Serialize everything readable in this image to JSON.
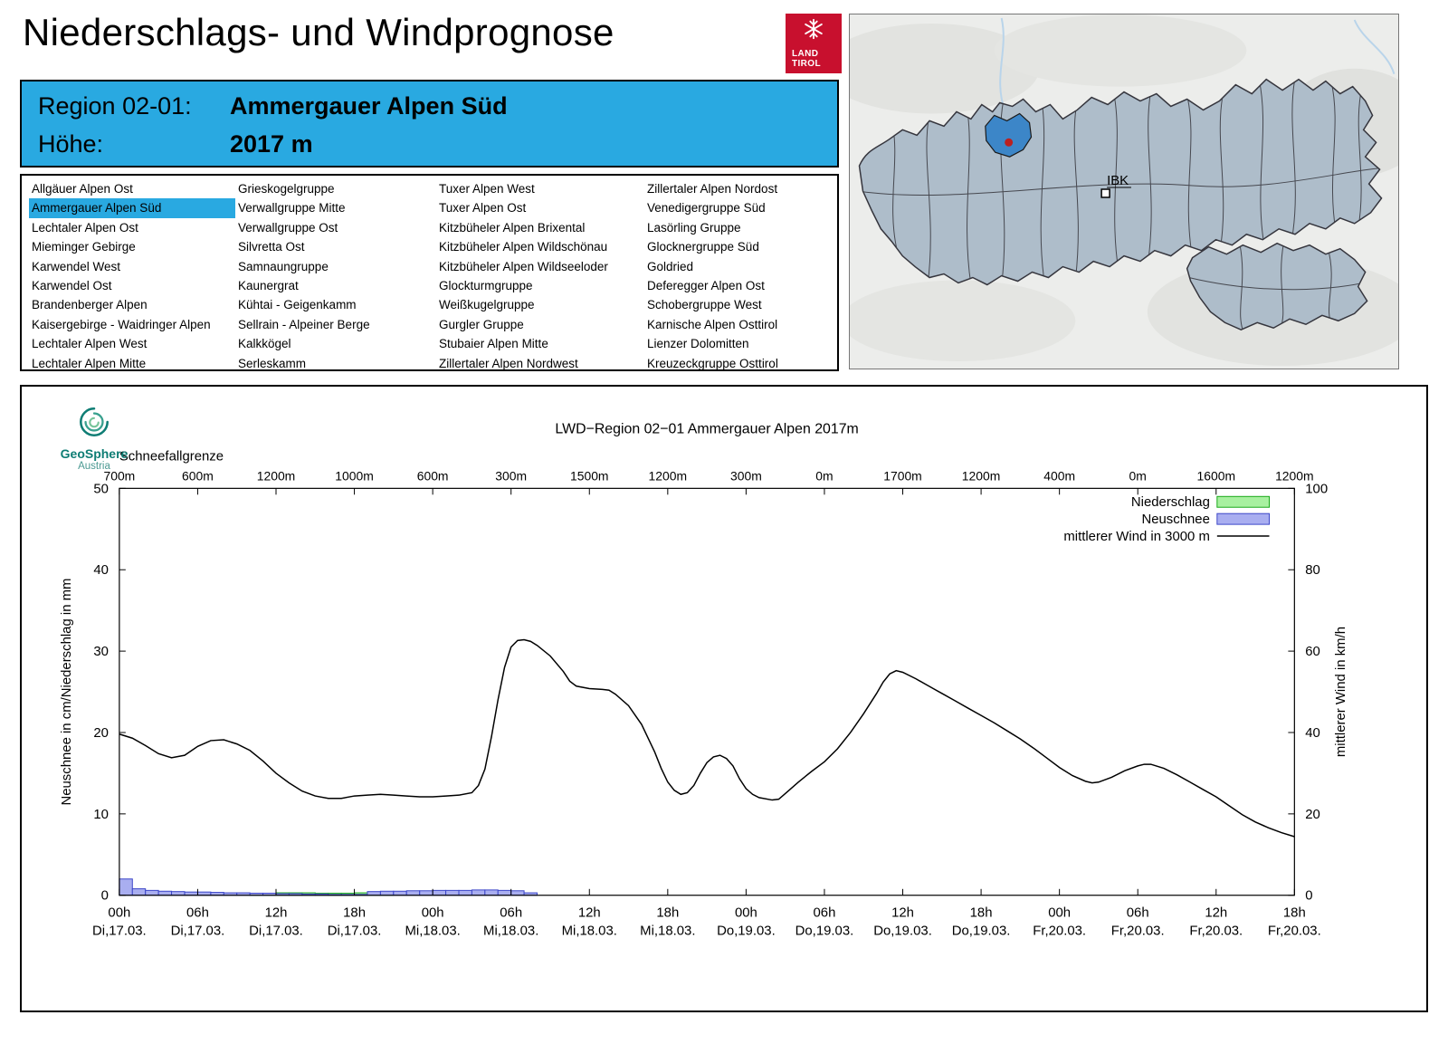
{
  "header": {
    "title": "Niederschlags- und Windprognose",
    "logo_line1": "LAND",
    "logo_line2": "TIROL"
  },
  "colors": {
    "accent_blue": "#29a9e1",
    "tirol_red": "#c8102e",
    "region_highlight": "#3c86c8",
    "marker_red": "#bb2020"
  },
  "map": {
    "marker_label": "IBK"
  },
  "region_info": {
    "region_label": "Region 02-01:",
    "region_name": "Ammergauer Alpen Süd",
    "altitude_label": "Höhe:",
    "altitude_value": "2017 m"
  },
  "region_list": {
    "selected": "Ammergauer Alpen Süd",
    "columns": [
      [
        "Allgäuer Alpen Ost",
        "Ammergauer Alpen Süd",
        "Lechtaler Alpen Ost",
        "Mieminger Gebirge",
        "Karwendel West",
        "Karwendel Ost",
        "Brandenberger Alpen",
        "Kaisergebirge - Waidringer Alpen",
        "Lechtaler Alpen West",
        "Lechtaler Alpen Mitte"
      ],
      [
        "Grieskogelgruppe",
        "Verwallgruppe Mitte",
        "Verwallgruppe Ost",
        "Silvretta Ost",
        "Samnaungruppe",
        "Kaunergrat",
        "Kühtai - Geigenkamm",
        "Sellrain - Alpeiner Berge",
        "Kalkkögel",
        "Serleskamm"
      ],
      [
        "Tuxer Alpen West",
        "Tuxer Alpen Ost",
        "Kitzbüheler Alpen Brixental",
        "Kitzbüheler Alpen Wildschönau",
        "Kitzbüheler Alpen Wildseeloder",
        "Glockturmgruppe",
        "Weißkugelgruppe",
        "Gurgler Gruppe",
        "Stubaier Alpen Mitte",
        "Zillertaler Alpen Nordwest"
      ],
      [
        "Zillertaler Alpen Nordost",
        "Venedigergruppe Süd",
        "Lasörling Gruppe",
        "Glocknergruppe Süd",
        "Goldried",
        "Deferegger Alpen Ost",
        "Schobergruppe West",
        "Karnische Alpen Osttirol",
        "Lienzer Dolomitten",
        "Kreuzeckgruppe Osttirol"
      ]
    ]
  },
  "chart_header": {
    "brand_name": "GeoSphere",
    "brand_sub": "Austria"
  },
  "chart_data": {
    "type": "line+bar",
    "title": "LWD−Region 02−01 Ammergauer Alpen 2017m",
    "snowline_label": "Schneefallgrenze",
    "snowline_per_tick": [
      "700m",
      "600m",
      "1200m",
      "1000m",
      "600m",
      "300m",
      "1500m",
      "1200m",
      "300m",
      "0m",
      "1700m",
      "1200m",
      "400m",
      "0m",
      "1600m",
      "1200m"
    ],
    "x_axis": {
      "unit": "hours",
      "range": [
        0,
        90
      ],
      "ticks": [
        {
          "t": 0,
          "hour": "00h",
          "day": "Di,17.03."
        },
        {
          "t": 6,
          "hour": "06h",
          "day": "Di,17.03."
        },
        {
          "t": 12,
          "hour": "12h",
          "day": "Di,17.03."
        },
        {
          "t": 18,
          "hour": "18h",
          "day": "Di,17.03."
        },
        {
          "t": 24,
          "hour": "00h",
          "day": "Mi,18.03."
        },
        {
          "t": 30,
          "hour": "06h",
          "day": "Mi,18.03."
        },
        {
          "t": 36,
          "hour": "12h",
          "day": "Mi,18.03."
        },
        {
          "t": 42,
          "hour": "18h",
          "day": "Mi,18.03."
        },
        {
          "t": 48,
          "hour": "00h",
          "day": "Do,19.03."
        },
        {
          "t": 54,
          "hour": "06h",
          "day": "Do,19.03."
        },
        {
          "t": 60,
          "hour": "12h",
          "day": "Do,19.03."
        },
        {
          "t": 66,
          "hour": "18h",
          "day": "Do,19.03."
        },
        {
          "t": 72,
          "hour": "00h",
          "day": "Fr,20.03."
        },
        {
          "t": 78,
          "hour": "06h",
          "day": "Fr,20.03."
        },
        {
          "t": 84,
          "hour": "12h",
          "day": "Fr,20.03."
        },
        {
          "t": 90,
          "hour": "18h",
          "day": "Fr,20.03."
        }
      ]
    },
    "y_left": {
      "label": "Neuschnee in cm/Niederschlag in mm",
      "min": 0,
      "max": 50,
      "ticks": [
        0,
        10,
        20,
        30,
        40,
        50
      ]
    },
    "y_right": {
      "label": "mittlerer Wind in km/h",
      "min": 0,
      "max": 100,
      "ticks": [
        0,
        20,
        40,
        60,
        80,
        100
      ]
    },
    "legend": [
      {
        "label": "Niederschlag",
        "type": "bar",
        "fill": "#a8f0a0",
        "stroke": "#18a818"
      },
      {
        "label": "Neuschnee",
        "type": "bar",
        "fill": "#a9aef0",
        "stroke": "#3c46c8"
      },
      {
        "label": "mittlerer Wind in 3000 m",
        "type": "line",
        "stroke": "#000000"
      }
    ],
    "series": {
      "wind_kmh": [
        [
          0,
          39.6
        ],
        [
          1,
          38.6
        ],
        [
          2,
          36.8
        ],
        [
          3,
          34.8
        ],
        [
          4,
          33.8
        ],
        [
          5,
          34.4
        ],
        [
          6,
          36.6
        ],
        [
          7,
          38.0
        ],
        [
          8,
          38.2
        ],
        [
          9,
          37.2
        ],
        [
          10,
          35.6
        ],
        [
          11,
          33.0
        ],
        [
          12,
          30.0
        ],
        [
          13,
          27.6
        ],
        [
          14,
          25.6
        ],
        [
          15,
          24.4
        ],
        [
          16,
          23.8
        ],
        [
          17,
          23.8
        ],
        [
          18,
          24.4
        ],
        [
          19,
          24.6
        ],
        [
          20,
          24.8
        ],
        [
          21,
          24.6
        ],
        [
          22,
          24.4
        ],
        [
          23,
          24.2
        ],
        [
          24,
          24.2
        ],
        [
          25,
          24.4
        ],
        [
          26,
          24.6
        ],
        [
          27,
          25.2
        ],
        [
          27.5,
          27.0
        ],
        [
          28,
          31.0
        ],
        [
          28.5,
          39.0
        ],
        [
          29,
          48.0
        ],
        [
          29.5,
          56.0
        ],
        [
          30,
          61.0
        ],
        [
          30.5,
          62.6
        ],
        [
          31,
          62.8
        ],
        [
          31.5,
          62.4
        ],
        [
          32,
          61.4
        ],
        [
          33,
          58.8
        ],
        [
          34,
          55.0
        ],
        [
          34.5,
          52.6
        ],
        [
          35,
          51.4
        ],
        [
          36,
          50.8
        ],
        [
          37,
          50.6
        ],
        [
          37.5,
          50.4
        ],
        [
          38,
          49.4
        ],
        [
          39,
          46.6
        ],
        [
          40,
          42.0
        ],
        [
          41,
          35.2
        ],
        [
          41.5,
          31.2
        ],
        [
          42,
          27.8
        ],
        [
          42.5,
          25.8
        ],
        [
          43,
          24.8
        ],
        [
          43.5,
          25.2
        ],
        [
          44,
          27.0
        ],
        [
          44.5,
          30.0
        ],
        [
          45,
          32.6
        ],
        [
          45.5,
          34.0
        ],
        [
          46,
          34.4
        ],
        [
          46.5,
          33.6
        ],
        [
          47,
          31.8
        ],
        [
          47.5,
          28.6
        ],
        [
          48,
          26.2
        ],
        [
          48.5,
          24.8
        ],
        [
          49,
          24.0
        ],
        [
          50,
          23.4
        ],
        [
          50.5,
          23.6
        ],
        [
          51,
          25.0
        ],
        [
          52,
          27.8
        ],
        [
          53,
          30.4
        ],
        [
          54,
          32.8
        ],
        [
          55,
          36.0
        ],
        [
          56,
          40.0
        ],
        [
          57,
          44.6
        ],
        [
          58,
          49.6
        ],
        [
          58.5,
          52.4
        ],
        [
          59,
          54.4
        ],
        [
          59.5,
          55.2
        ],
        [
          60,
          54.8
        ],
        [
          61,
          53.2
        ],
        [
          62,
          51.4
        ],
        [
          63,
          49.6
        ],
        [
          64,
          47.8
        ],
        [
          65,
          46.0
        ],
        [
          66,
          44.2
        ],
        [
          67,
          42.4
        ],
        [
          68,
          40.4
        ],
        [
          69,
          38.4
        ],
        [
          70,
          36.2
        ],
        [
          71,
          33.8
        ],
        [
          72,
          31.4
        ],
        [
          73,
          29.4
        ],
        [
          74,
          28.0
        ],
        [
          74.5,
          27.6
        ],
        [
          75,
          27.8
        ],
        [
          76,
          29.0
        ],
        [
          77,
          30.6
        ],
        [
          78,
          31.8
        ],
        [
          78.5,
          32.2
        ],
        [
          79,
          32.2
        ],
        [
          80,
          31.2
        ],
        [
          81,
          29.6
        ],
        [
          82,
          27.8
        ],
        [
          83,
          26.0
        ],
        [
          84,
          24.2
        ],
        [
          85,
          22.0
        ],
        [
          86,
          19.8
        ],
        [
          87,
          18.0
        ],
        [
          88,
          16.6
        ],
        [
          89,
          15.4
        ],
        [
          90,
          14.4
        ]
      ],
      "neuschnee_cm": [
        [
          0,
          2.0
        ],
        [
          1,
          0.8
        ],
        [
          2,
          0.6
        ],
        [
          3,
          0.5
        ],
        [
          4,
          0.45
        ],
        [
          5,
          0.4
        ],
        [
          6,
          0.4
        ],
        [
          7,
          0.35
        ],
        [
          8,
          0.3
        ],
        [
          9,
          0.3
        ],
        [
          10,
          0.25
        ],
        [
          11,
          0.25
        ],
        [
          12,
          0.2
        ],
        [
          13,
          0.2
        ],
        [
          14,
          0.15
        ],
        [
          15,
          0.15
        ],
        [
          16,
          0.1
        ],
        [
          17,
          0.1
        ],
        [
          18,
          0.1
        ],
        [
          19,
          0.45
        ],
        [
          20,
          0.5
        ],
        [
          21,
          0.5
        ],
        [
          22,
          0.55
        ],
        [
          23,
          0.55
        ],
        [
          24,
          0.6
        ],
        [
          25,
          0.6
        ],
        [
          26,
          0.6
        ],
        [
          27,
          0.65
        ],
        [
          28,
          0.65
        ],
        [
          29,
          0.6
        ],
        [
          30,
          0.55
        ],
        [
          31,
          0.3
        ]
      ],
      "niederschlag_mm": [
        [
          10,
          0.2
        ],
        [
          11,
          0.2
        ],
        [
          12,
          0.3
        ],
        [
          13,
          0.3
        ],
        [
          14,
          0.3
        ],
        [
          15,
          0.25
        ],
        [
          16,
          0.25
        ],
        [
          17,
          0.25
        ],
        [
          18,
          0.3
        ],
        [
          19,
          0.3
        ],
        [
          20,
          0.2
        ]
      ]
    }
  }
}
